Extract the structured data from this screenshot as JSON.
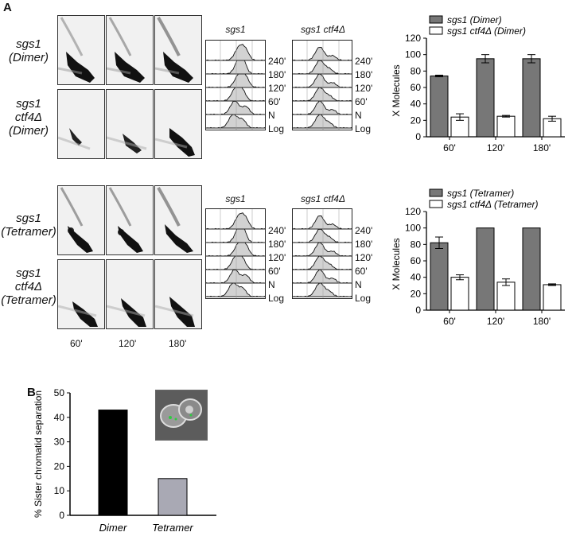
{
  "panel_a_label": "A",
  "panel_b_label": "B",
  "gels": {
    "row_labels_dimer": [
      [
        "sgs1",
        "(Dimer)"
      ],
      [
        "sgs1",
        "ctf4Δ",
        "(Dimer)"
      ]
    ],
    "row_labels_tetramer": [
      [
        "sgs1",
        "(Tetramer)"
      ],
      [
        "sgs1",
        "ctf4Δ",
        "(Tetramer)"
      ]
    ],
    "time_labels": [
      "60'",
      "120'",
      "180'"
    ]
  },
  "facs": {
    "top_titles": [
      "sgs1",
      "sgs1 ctf4Δ"
    ],
    "bottom_titles": [
      "sgs1",
      "sgs1 ctf4Δ"
    ],
    "timepoints": [
      "240'",
      "180'",
      "120'",
      "60'",
      "N",
      "Log"
    ]
  },
  "chart_data": [
    {
      "type": "bar",
      "categories": [
        "60'",
        "120'",
        "180'"
      ],
      "series": [
        {
          "name": "sgs1 (Dimer)",
          "values": [
            74,
            95,
            95
          ],
          "errors": [
            1,
            5,
            5
          ],
          "color": "#777777"
        },
        {
          "name": "sgs1 ctf4Δ (Dimer)",
          "values": [
            24,
            25,
            22
          ],
          "errors": [
            4,
            1,
            3
          ],
          "color": "#ffffff"
        }
      ],
      "ylabel": "X Molecules",
      "ylim": [
        0,
        120
      ],
      "yticks": [
        0,
        20,
        40,
        60,
        80,
        100,
        120
      ],
      "legend": "top"
    },
    {
      "type": "bar",
      "categories": [
        "60'",
        "120'",
        "180'"
      ],
      "series": [
        {
          "name": "sgs1 (Tetramer)",
          "values": [
            82,
            100,
            100
          ],
          "errors": [
            7,
            0,
            0
          ],
          "color": "#777777"
        },
        {
          "name": "sgs1 ctf4Δ (Tetramer)",
          "values": [
            40,
            34,
            31
          ],
          "errors": [
            3,
            4,
            1
          ],
          "color": "#ffffff"
        }
      ],
      "ylabel": "X Molecules",
      "ylim": [
        0,
        120
      ],
      "yticks": [
        0,
        20,
        40,
        60,
        80,
        100,
        120
      ],
      "legend": "top"
    },
    {
      "type": "bar",
      "categories": [
        "Dimer",
        "Tetramer"
      ],
      "values": [
        43,
        15
      ],
      "colors": [
        "#000000",
        "#a9a9b4"
      ],
      "ylabel": "% Sister chromatid separation",
      "ylim": [
        0,
        50
      ],
      "yticks": [
        0,
        10,
        20,
        30,
        40,
        50
      ]
    }
  ]
}
